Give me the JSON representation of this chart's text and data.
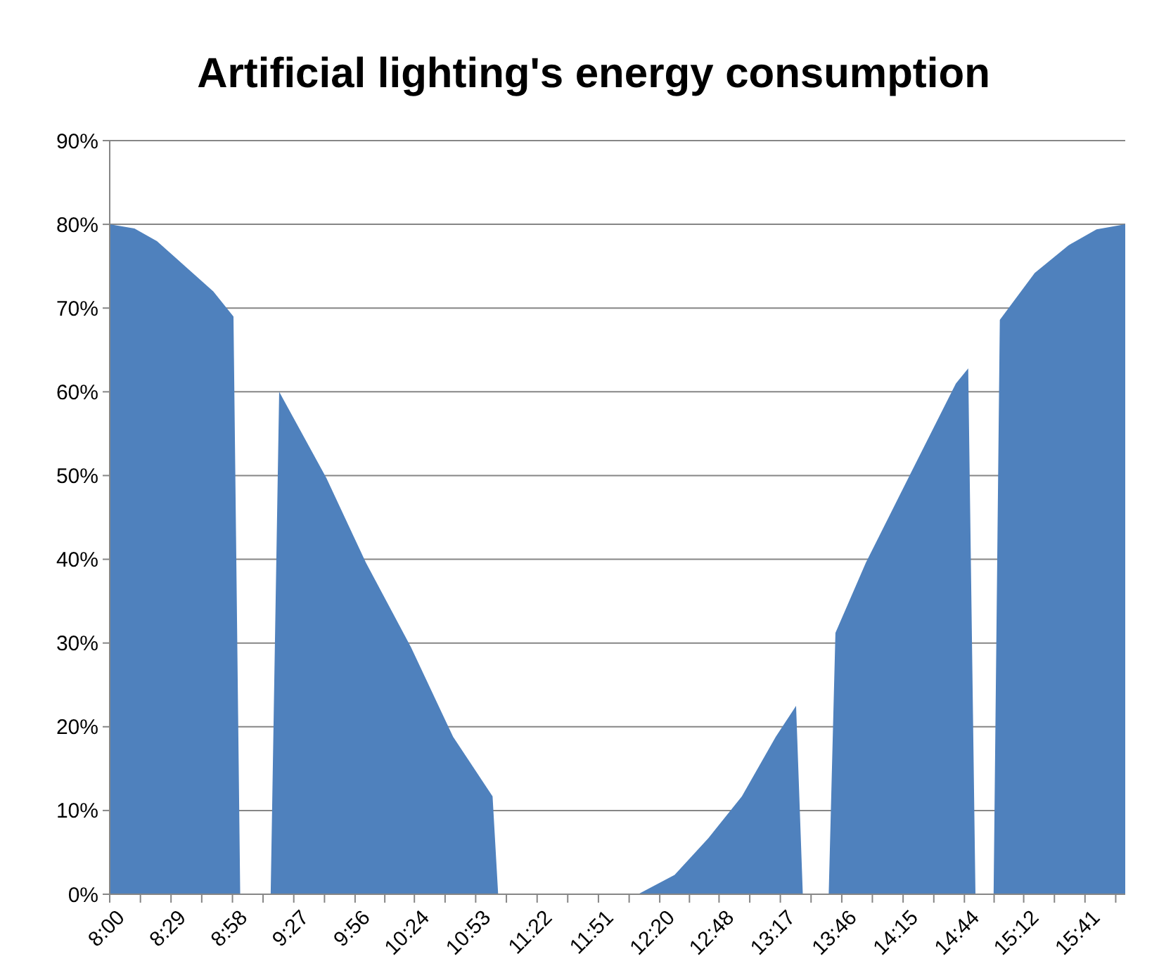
{
  "chart_data": {
    "type": "area",
    "title": "Artificial lighting's energy consumption",
    "x": [
      8,
      8.195,
      8.372,
      8.594,
      8.816,
      8.975,
      9.028,
      9.268,
      9.335,
      9.707,
      10.018,
      10.373,
      10.705,
      11.016,
      11.06,
      12.162,
      12.45,
      12.716,
      12.98,
      13.247,
      13.407,
      13.46,
      13.664,
      13.717,
      13.957,
      14.311,
      14.666,
      14.763,
      14.82,
      14.963,
      15.012,
      15.287,
      15.553,
      15.774,
      16
    ],
    "series": [
      {
        "color": "#4f81bd",
        "values": [
          80,
          79.5,
          78,
          75,
          72,
          69,
          0,
          0,
          60,
          49.7,
          39.6,
          29.5,
          18.8,
          11.7,
          0,
          0,
          2.3,
          6.7,
          11.7,
          18.8,
          22.5,
          0,
          0,
          31.2,
          39.6,
          50.3,
          61,
          62.8,
          0,
          0,
          68.6,
          74.2,
          77.5,
          79.4,
          80
        ]
      }
    ],
    "xlim": [
      8,
      16
    ],
    "xticks": [
      {
        "value": 8,
        "label": "8:00"
      },
      {
        "value": 8.242,
        "label": null
      },
      {
        "value": 8.483,
        "label": "8:29"
      },
      {
        "value": 8.725,
        "label": null
      },
      {
        "value": 8.967,
        "label": "8:58"
      },
      {
        "value": 9.208,
        "label": null
      },
      {
        "value": 9.45,
        "label": "9:27"
      },
      {
        "value": 9.692,
        "label": null
      },
      {
        "value": 9.933,
        "label": "9:56"
      },
      {
        "value": 10.167,
        "label": null
      },
      {
        "value": 10.4,
        "label": "10:24"
      },
      {
        "value": 10.642,
        "label": null
      },
      {
        "value": 10.883,
        "label": "10:53"
      },
      {
        "value": 11.125,
        "label": null
      },
      {
        "value": 11.367,
        "label": "11:22"
      },
      {
        "value": 11.608,
        "label": null
      },
      {
        "value": 11.85,
        "label": "11:51"
      },
      {
        "value": 12.092,
        "label": null
      },
      {
        "value": 12.333,
        "label": "12:20"
      },
      {
        "value": 12.567,
        "label": null
      },
      {
        "value": 12.8,
        "label": "12:48"
      },
      {
        "value": 13.042,
        "label": null
      },
      {
        "value": 13.283,
        "label": "13:17"
      },
      {
        "value": 13.525,
        "label": null
      },
      {
        "value": 13.767,
        "label": "13:46"
      },
      {
        "value": 14.008,
        "label": null
      },
      {
        "value": 14.25,
        "label": "14:15"
      },
      {
        "value": 14.492,
        "label": null
      },
      {
        "value": 14.733,
        "label": "14:44"
      },
      {
        "value": 14.967,
        "label": null
      },
      {
        "value": 15.2,
        "label": "15:12"
      },
      {
        "value": 15.442,
        "label": null
      },
      {
        "value": 15.683,
        "label": "15:41"
      },
      {
        "value": 15.925,
        "label": null
      }
    ],
    "ylim": [
      0,
      90
    ],
    "yticks": [
      {
        "value": 0,
        "label": "0%"
      },
      {
        "value": 10,
        "label": "10%"
      },
      {
        "value": 20,
        "label": "20%"
      },
      {
        "value": 30,
        "label": "30%"
      },
      {
        "value": 40,
        "label": "40%"
      },
      {
        "value": 50,
        "label": "50%"
      },
      {
        "value": 60,
        "label": "60%"
      },
      {
        "value": 70,
        "label": "70%"
      },
      {
        "value": 80,
        "label": "80%"
      },
      {
        "value": 90,
        "label": "90%"
      }
    ],
    "grid": "y"
  }
}
